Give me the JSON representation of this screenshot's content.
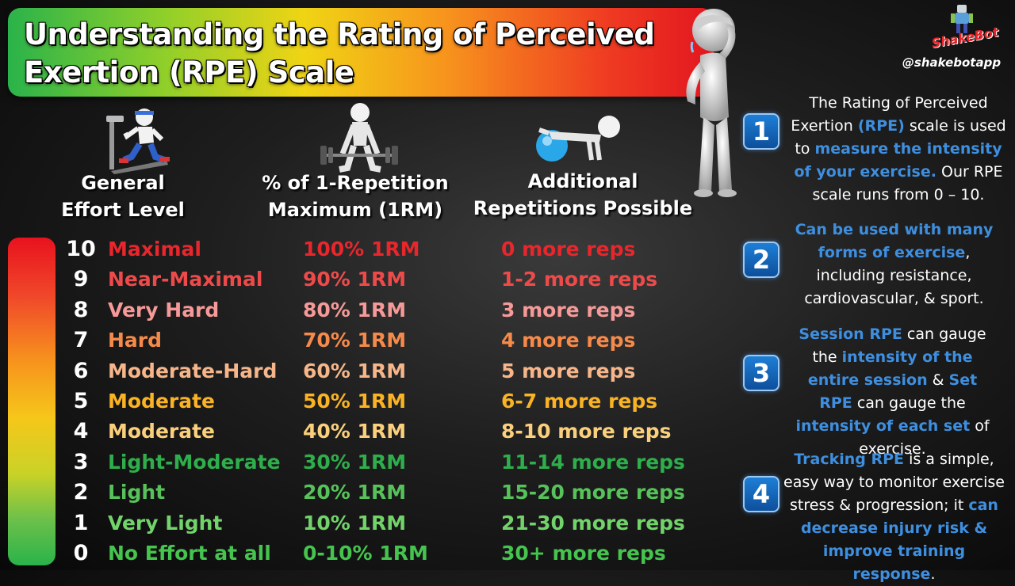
{
  "title": {
    "line1": "Understanding the Rating of Perceived",
    "line2": "Exertion (RPE) Scale"
  },
  "brand": {
    "logo_text": "ShakeBot",
    "handle": "@shakebotapp"
  },
  "headers": {
    "effort_1": "General",
    "effort_2": "Effort Level",
    "pct_1": "% of 1-Repetition",
    "pct_2": "Maximum (1RM)",
    "reps_1": "Additional",
    "reps_2": "Repetitions Possible"
  },
  "rows": [
    {
      "num": "10",
      "level": "Maximal",
      "pct": "100% 1RM",
      "reps": "0 more reps",
      "color": "#e8262c"
    },
    {
      "num": "9",
      "level": "Near-Maximal",
      "pct": "90% 1RM",
      "reps": "1-2 more reps",
      "color": "#ef4a4a"
    },
    {
      "num": "8",
      "level": "Very Hard",
      "pct": "80% 1RM",
      "reps": "3 more reps",
      "color": "#f59a98"
    },
    {
      "num": "7",
      "level": "Hard",
      "pct": "70% 1RM",
      "reps": "4 more reps",
      "color": "#f58a4a"
    },
    {
      "num": "6",
      "level": "Moderate-Hard",
      "pct": "60% 1RM",
      "reps": "5 more reps",
      "color": "#f6b68a"
    },
    {
      "num": "5",
      "level": "Moderate",
      "pct": "50% 1RM",
      "reps": "6-7 more reps",
      "color": "#f9b324"
    },
    {
      "num": "4",
      "level": "Moderate",
      "pct": "40% 1RM",
      "reps": "8-10 more reps",
      "color": "#fbd07c"
    },
    {
      "num": "3",
      "level": "Light-Moderate",
      "pct": "30% 1RM",
      "reps": "11-14 more reps",
      "color": "#2fae4c"
    },
    {
      "num": "2",
      "level": "Light",
      "pct": "20% 1RM",
      "reps": "15-20 more reps",
      "color": "#57c25a"
    },
    {
      "num": "1",
      "level": "Very Light",
      "pct": "10% 1RM",
      "reps": "21-30 more reps",
      "color": "#72d36a"
    },
    {
      "num": "0",
      "level": "No Effort at all",
      "pct": "0-10% 1RM",
      "reps": "30+ more reps",
      "color": "#45c44e"
    }
  ],
  "notes": [
    {
      "num": "1",
      "parts": [
        {
          "t": "The Rating of Perceived",
          "h": false
        },
        {
          "t": " Exertion ",
          "h": false
        },
        {
          "t": "(RPE)",
          "h": true
        },
        {
          "t": " scale is used to ",
          "h": false
        },
        {
          "t": "measure the intensity of your exercise.",
          "h": true
        },
        {
          "t": " Our RPE scale runs from 0 – 10.",
          "h": false
        }
      ]
    },
    {
      "num": "2",
      "parts": [
        {
          "t": "Can be used with many forms of exercise",
          "h": true
        },
        {
          "t": ", including resistance, cardiovascular, & sport.",
          "h": false
        }
      ]
    },
    {
      "num": "3",
      "parts": [
        {
          "t": "Session RPE",
          "h": true
        },
        {
          "t": " can gauge the ",
          "h": false
        },
        {
          "t": "intensity of the entire session",
          "h": true
        },
        {
          "t": " & ",
          "h": false
        },
        {
          "t": "Set RPE",
          "h": true
        },
        {
          "t": " can gauge the ",
          "h": false
        },
        {
          "t": "intensity of each set",
          "h": true
        },
        {
          "t": " of exercise.",
          "h": false
        }
      ]
    },
    {
      "num": "4",
      "parts": [
        {
          "t": "Tracking RPE",
          "h": true
        },
        {
          "t": " is a simple, easy way to monitor exercise stress & progression; it ",
          "h": false
        },
        {
          "t": "can decrease injury risk & improve training response",
          "h": true
        },
        {
          "t": ".",
          "h": false
        }
      ]
    }
  ],
  "colors": {
    "accent": "#3e8fe0",
    "badge": "#1e7fd6"
  },
  "icons": [
    "treadmill-runner-icon",
    "deadlift-figure-icon",
    "ball-pushup-figure-icon",
    "tired-figure-icon",
    "robot-mascot-icon"
  ]
}
